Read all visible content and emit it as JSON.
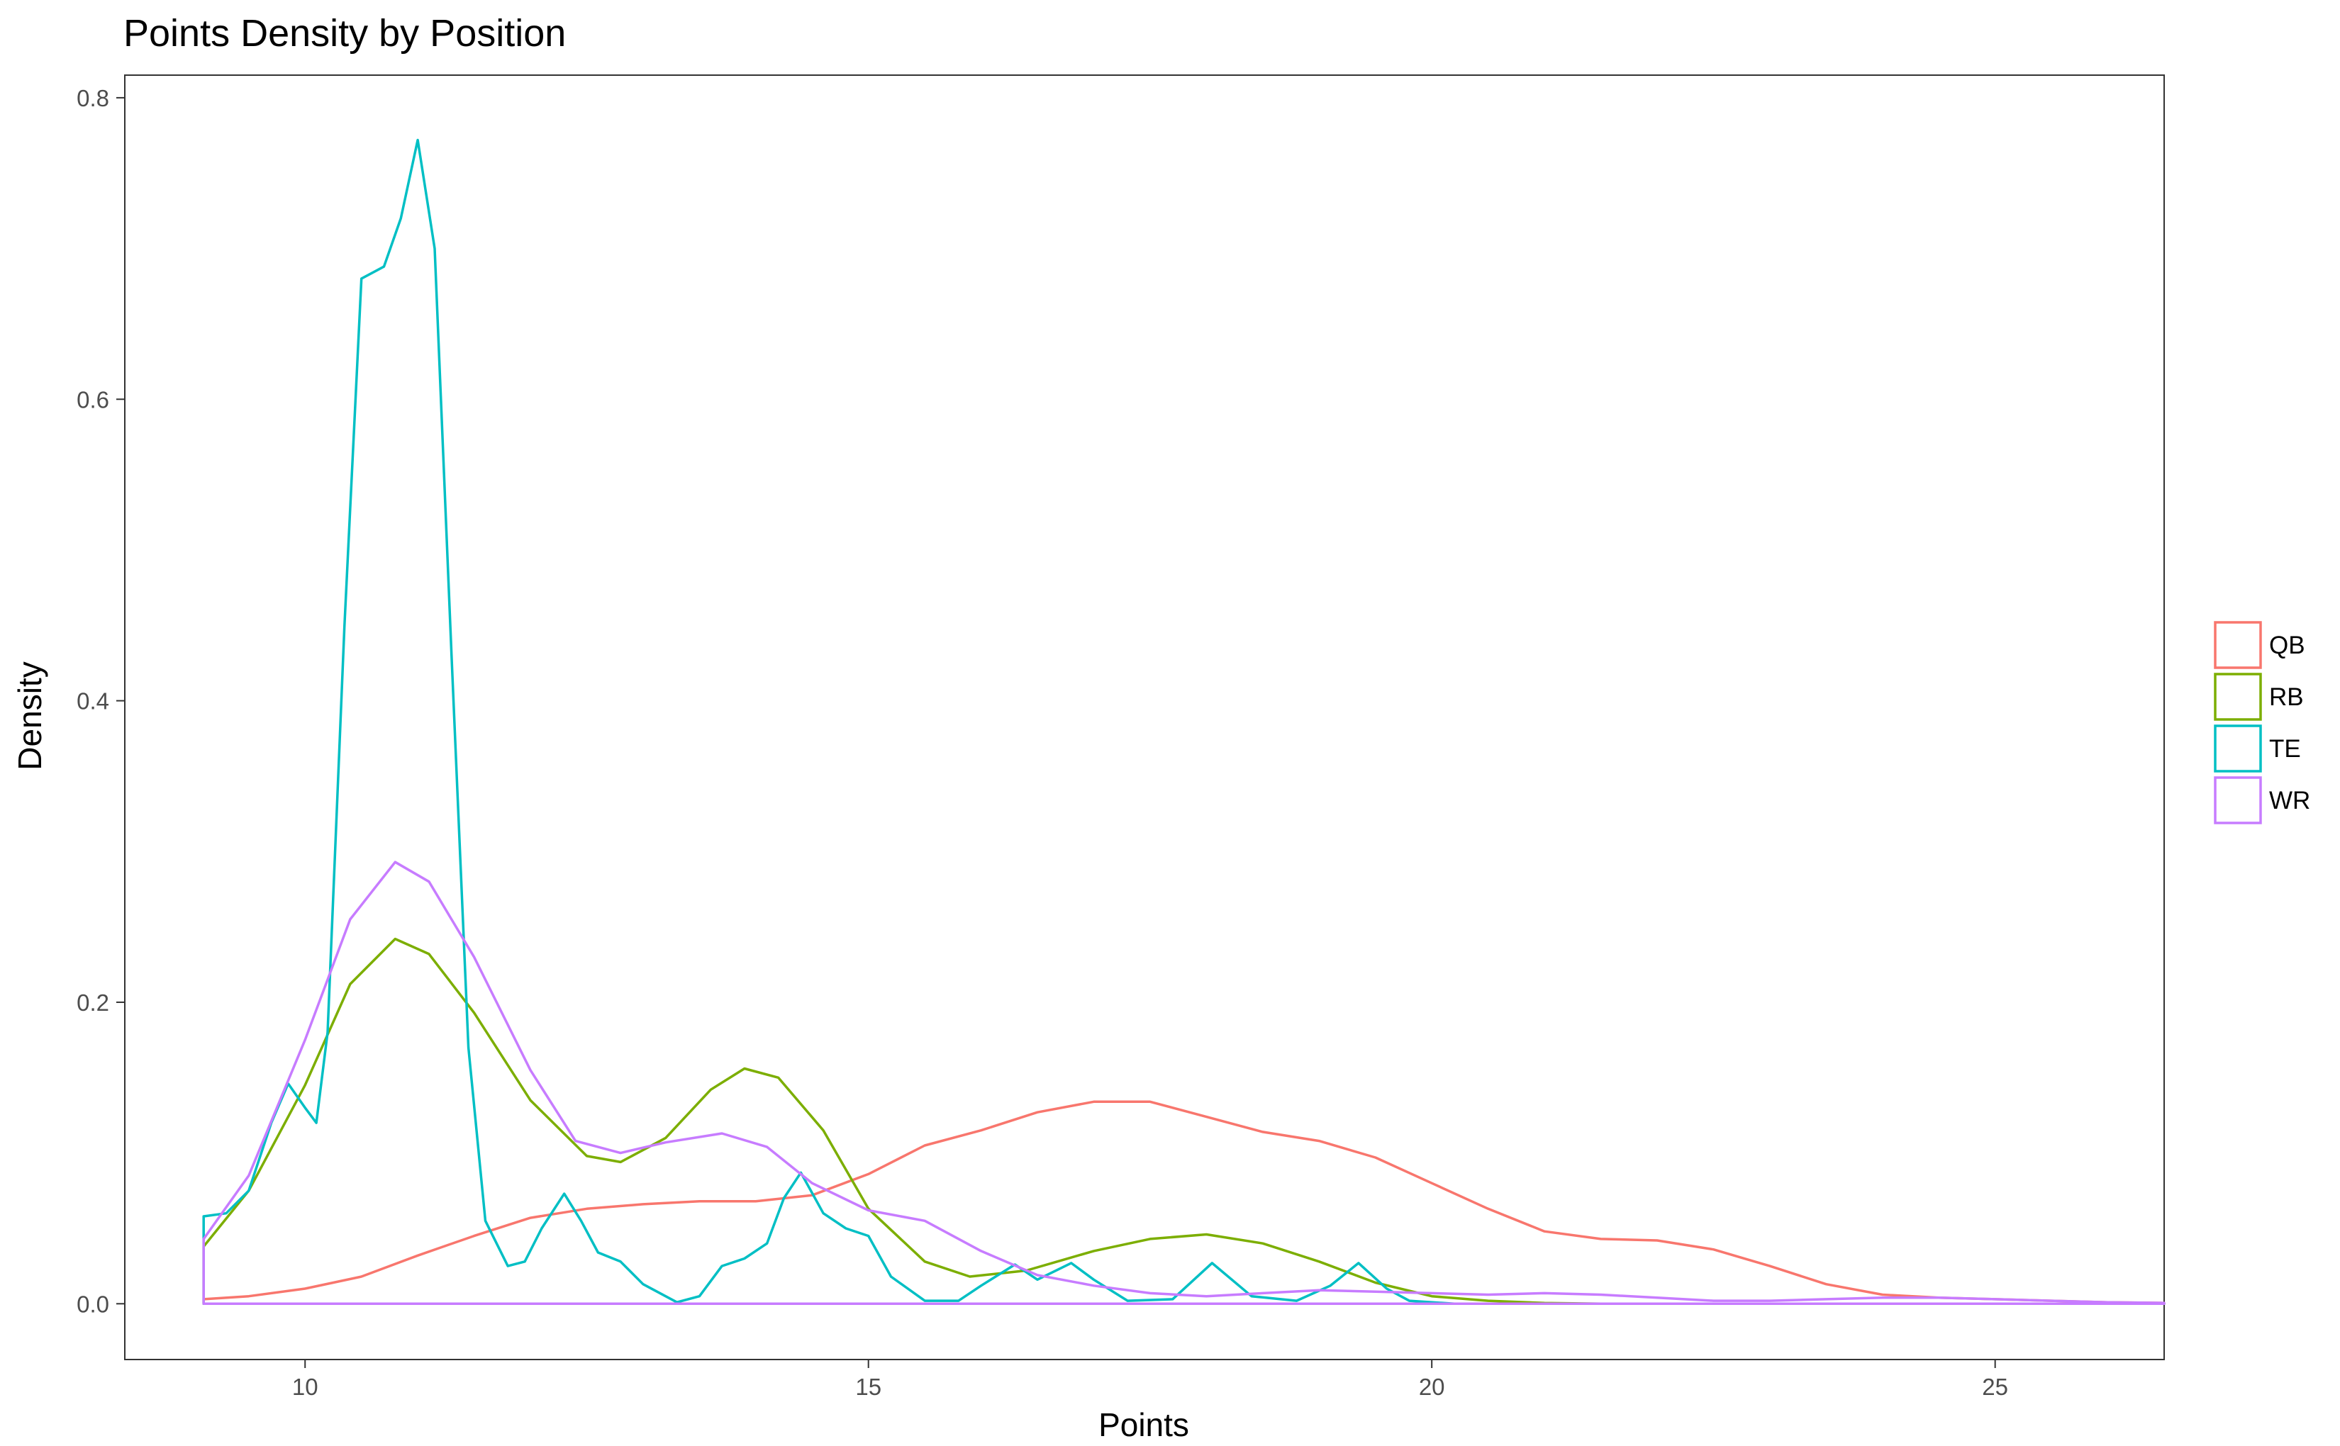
{
  "chart_data": {
    "type": "line",
    "title": "Points Density by Position",
    "xlabel": "Points",
    "ylabel": "Density",
    "xlim": [
      8.4,
      26.5
    ],
    "ylim": [
      -0.037,
      0.815
    ],
    "x_ticks": [
      10,
      15,
      20,
      25
    ],
    "y_ticks": [
      0.0,
      0.2,
      0.4,
      0.6,
      0.8
    ],
    "x_tick_labels": [
      "10",
      "15",
      "20",
      "25"
    ],
    "y_tick_labels": [
      "0.0",
      "0.2",
      "0.4",
      "0.6",
      "0.8"
    ],
    "grid": false,
    "legend_position": "right",
    "x_min": 9.1,
    "x_max": 26.5,
    "series": [
      {
        "name": "QB",
        "color": "#F8766D",
        "points": [
          [
            9.1,
            0.003
          ],
          [
            9.5,
            0.005
          ],
          [
            10,
            0.01
          ],
          [
            10.5,
            0.018
          ],
          [
            11,
            0.032
          ],
          [
            11.5,
            0.045
          ],
          [
            12,
            0.057
          ],
          [
            12.5,
            0.063
          ],
          [
            13,
            0.066
          ],
          [
            13.5,
            0.068
          ],
          [
            14,
            0.068
          ],
          [
            14.5,
            0.072
          ],
          [
            15,
            0.086
          ],
          [
            15.5,
            0.105
          ],
          [
            16,
            0.115
          ],
          [
            16.5,
            0.127
          ],
          [
            17,
            0.134
          ],
          [
            17.5,
            0.134
          ],
          [
            18,
            0.124
          ],
          [
            18.5,
            0.114
          ],
          [
            19,
            0.108
          ],
          [
            19.5,
            0.097
          ],
          [
            20,
            0.08
          ],
          [
            20.5,
            0.063
          ],
          [
            21,
            0.048
          ],
          [
            21.5,
            0.043
          ],
          [
            22,
            0.042
          ],
          [
            22.5,
            0.036
          ],
          [
            23,
            0.025
          ],
          [
            23.5,
            0.013
          ],
          [
            24,
            0.006
          ],
          [
            24.5,
            0.004
          ],
          [
            25,
            0.003
          ],
          [
            25.5,
            0.002
          ],
          [
            26,
            0.001
          ],
          [
            26.5,
            0.0005
          ]
        ]
      },
      {
        "name": "RB",
        "color": "#7CAE00",
        "points": [
          [
            9.1,
            0.038
          ],
          [
            9.5,
            0.075
          ],
          [
            10,
            0.145
          ],
          [
            10.4,
            0.212
          ],
          [
            10.8,
            0.242
          ],
          [
            11.1,
            0.232
          ],
          [
            11.5,
            0.193
          ],
          [
            12,
            0.135
          ],
          [
            12.5,
            0.098
          ],
          [
            12.8,
            0.094
          ],
          [
            13.2,
            0.11
          ],
          [
            13.6,
            0.142
          ],
          [
            13.9,
            0.156
          ],
          [
            14.2,
            0.15
          ],
          [
            14.6,
            0.115
          ],
          [
            15,
            0.063
          ],
          [
            15.5,
            0.028
          ],
          [
            15.9,
            0.018
          ],
          [
            16.4,
            0.022
          ],
          [
            17,
            0.035
          ],
          [
            17.5,
            0.043
          ],
          [
            18,
            0.046
          ],
          [
            18.5,
            0.04
          ],
          [
            19,
            0.028
          ],
          [
            19.5,
            0.014
          ],
          [
            20,
            0.005
          ],
          [
            20.5,
            0.002
          ],
          [
            21,
            0.0005
          ],
          [
            21.5,
            0
          ]
        ]
      },
      {
        "name": "TE",
        "color": "#00BFC4",
        "points": [
          [
            9.1,
            0.058
          ],
          [
            9.3,
            0.06
          ],
          [
            9.5,
            0.075
          ],
          [
            9.7,
            0.12
          ],
          [
            9.85,
            0.146
          ],
          [
            10,
            0.13
          ],
          [
            10.1,
            0.12
          ],
          [
            10.2,
            0.18
          ],
          [
            10.35,
            0.45
          ],
          [
            10.5,
            0.68
          ],
          [
            10.7,
            0.688
          ],
          [
            10.85,
            0.72
          ],
          [
            11,
            0.772
          ],
          [
            11.15,
            0.7
          ],
          [
            11.3,
            0.43
          ],
          [
            11.45,
            0.17
          ],
          [
            11.6,
            0.055
          ],
          [
            11.8,
            0.025
          ],
          [
            11.95,
            0.028
          ],
          [
            12.1,
            0.05
          ],
          [
            12.3,
            0.073
          ],
          [
            12.45,
            0.055
          ],
          [
            12.6,
            0.034
          ],
          [
            12.8,
            0.028
          ],
          [
            13,
            0.013
          ],
          [
            13.3,
            0.001
          ],
          [
            13.5,
            0.005
          ],
          [
            13.7,
            0.025
          ],
          [
            13.9,
            0.03
          ],
          [
            14.1,
            0.04
          ],
          [
            14.25,
            0.07
          ],
          [
            14.4,
            0.087
          ],
          [
            14.6,
            0.06
          ],
          [
            14.8,
            0.05
          ],
          [
            15,
            0.045
          ],
          [
            15.2,
            0.018
          ],
          [
            15.5,
            0.002
          ],
          [
            15.8,
            0.002
          ],
          [
            16,
            0.012
          ],
          [
            16.3,
            0.026
          ],
          [
            16.5,
            0.016
          ],
          [
            16.8,
            0.027
          ],
          [
            17,
            0.016
          ],
          [
            17.3,
            0.002
          ],
          [
            17.7,
            0.003
          ],
          [
            18.05,
            0.027
          ],
          [
            18.4,
            0.005
          ],
          [
            18.8,
            0.002
          ],
          [
            19.1,
            0.012
          ],
          [
            19.35,
            0.027
          ],
          [
            19.6,
            0.01
          ],
          [
            19.8,
            0.002
          ],
          [
            20.2,
            0
          ],
          [
            21,
            0
          ],
          [
            26.5,
            0
          ]
        ]
      },
      {
        "name": "WR",
        "color": "#C77CFF",
        "points": [
          [
            9.1,
            0.043
          ],
          [
            9.5,
            0.085
          ],
          [
            10,
            0.175
          ],
          [
            10.4,
            0.255
          ],
          [
            10.8,
            0.293
          ],
          [
            11.1,
            0.28
          ],
          [
            11.5,
            0.23
          ],
          [
            12,
            0.155
          ],
          [
            12.4,
            0.108
          ],
          [
            12.8,
            0.1
          ],
          [
            13.2,
            0.107
          ],
          [
            13.7,
            0.113
          ],
          [
            14.1,
            0.104
          ],
          [
            14.5,
            0.08
          ],
          [
            15,
            0.062
          ],
          [
            15.5,
            0.055
          ],
          [
            16,
            0.035
          ],
          [
            16.5,
            0.019
          ],
          [
            17,
            0.012
          ],
          [
            17.5,
            0.007
          ],
          [
            18,
            0.005
          ],
          [
            18.5,
            0.007
          ],
          [
            19,
            0.009
          ],
          [
            19.5,
            0.008
          ],
          [
            20,
            0.007
          ],
          [
            20.5,
            0.006
          ],
          [
            21,
            0.007
          ],
          [
            21.5,
            0.006
          ],
          [
            22,
            0.004
          ],
          [
            22.5,
            0.002
          ],
          [
            23,
            0.002
          ],
          [
            23.5,
            0.003
          ],
          [
            24,
            0.004
          ],
          [
            24.5,
            0.004
          ],
          [
            25,
            0.003
          ],
          [
            25.5,
            0.002
          ],
          [
            26,
            0.001
          ],
          [
            26.5,
            0.0005
          ]
        ]
      }
    ]
  }
}
